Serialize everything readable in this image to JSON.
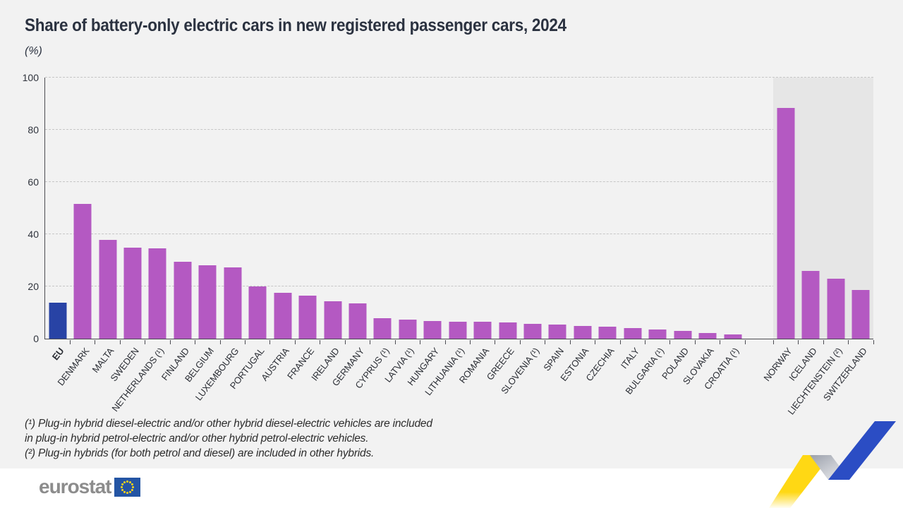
{
  "header": {
    "title": "Share of battery-only electric cars in new registered passenger cars, 2024",
    "unit_label": "(%)"
  },
  "chart_data": {
    "type": "bar",
    "title": "Share of battery-only electric cars in new registered passenger cars, 2024",
    "ylabel": "(%)",
    "ylim": [
      0,
      100
    ],
    "yticks": [
      0,
      20,
      40,
      60,
      80,
      100
    ],
    "grid": "horizontal-dashed",
    "legend": "none",
    "colors": {
      "bar": "#b459c2",
      "eu_bar": "#2843a5",
      "efta_band": "#e6e6e6",
      "background": "#f2f2f2"
    },
    "bars": [
      {
        "label": "EU",
        "value": 13.7,
        "highlight": true
      },
      {
        "label": "DENMARK",
        "value": 51.5
      },
      {
        "label": "MALTA",
        "value": 37.8
      },
      {
        "label": "SWEDEN",
        "value": 35.0
      },
      {
        "label": "NETHERLANDS (¹)",
        "value": 34.7
      },
      {
        "label": "FINLAND",
        "value": 29.4
      },
      {
        "label": "BELGIUM",
        "value": 28.1
      },
      {
        "label": "LUXEMBOURG",
        "value": 27.4
      },
      {
        "label": "PORTUGAL",
        "value": 19.9
      },
      {
        "label": "AUSTRIA",
        "value": 17.6
      },
      {
        "label": "FRANCE",
        "value": 16.4
      },
      {
        "label": "IRELAND",
        "value": 14.2
      },
      {
        "label": "GERMANY",
        "value": 13.5
      },
      {
        "label": "CYPRUS (¹)",
        "value": 7.8
      },
      {
        "label": "LATVIA (¹)",
        "value": 7.2
      },
      {
        "label": "HUNGARY",
        "value": 6.8
      },
      {
        "label": "LITHUANIA (¹)",
        "value": 6.6
      },
      {
        "label": "ROMANIA",
        "value": 6.4
      },
      {
        "label": "GREECE",
        "value": 6.2
      },
      {
        "label": "SLOVENIA (¹)",
        "value": 5.8
      },
      {
        "label": "SPAIN",
        "value": 5.3
      },
      {
        "label": "ESTONIA",
        "value": 4.8
      },
      {
        "label": "CZECHIA",
        "value": 4.6
      },
      {
        "label": "ITALY",
        "value": 4.1
      },
      {
        "label": "BULGARIA (¹)",
        "value": 3.6
      },
      {
        "label": "POLAND",
        "value": 2.9
      },
      {
        "label": "SLOVAKIA",
        "value": 2.2
      },
      {
        "label": "CROATIA (¹)",
        "value": 1.7
      },
      {
        "label": "NORWAY",
        "value": 88.3,
        "gap_before": true,
        "shaded": true
      },
      {
        "label": "ICELAND",
        "value": 25.9,
        "shaded": true
      },
      {
        "label": "LIECHTENSTEIN (²)",
        "value": 22.9,
        "shaded": true
      },
      {
        "label": "SWITZERLAND",
        "value": 18.6,
        "shaded": true
      }
    ]
  },
  "footnotes": [
    "(¹) Plug-in hybrid diesel-electric and/or other hybrid diesel-electric vehicles are included",
    "in plug-in hybrid petrol-electric and/or other hybrid petrol-electric vehicles.",
    "(²) Plug-in hybrids (for both petrol and diesel) are included in other hybrids."
  ],
  "footer": {
    "logo_text": "eurostat"
  }
}
